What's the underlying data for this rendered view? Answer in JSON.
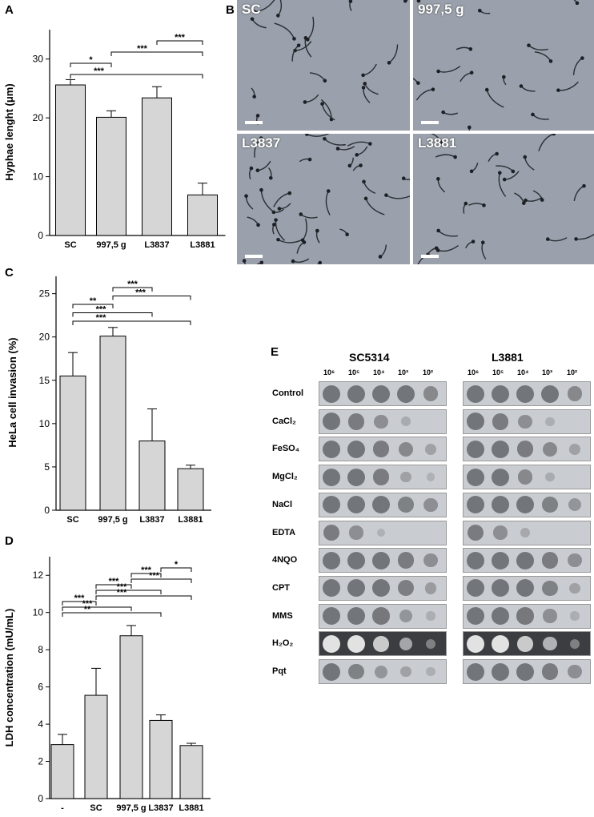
{
  "panels": {
    "a": "A",
    "b": "B",
    "c": "C",
    "d": "D",
    "e": "E"
  },
  "chart_data": [
    {
      "type": "bar",
      "panel": "A",
      "categories": [
        "SC",
        "997,5 g",
        "L3837",
        "L3881"
      ],
      "values": [
        25.6,
        20.1,
        23.4,
        6.9
      ],
      "errors": [
        0.9,
        1.1,
        1.9,
        2.0
      ],
      "ylabel": "Hyphae lenght (μm)",
      "ylim": [
        0,
        35
      ],
      "yticks": [
        "0",
        "10",
        "20",
        "30"
      ],
      "significance": [
        {
          "from": 0,
          "to": 1,
          "label": "*"
        },
        {
          "from": 0,
          "to": 3,
          "label": "***"
        },
        {
          "from": 1,
          "to": 3,
          "label": "***"
        },
        {
          "from": 2,
          "to": 3,
          "label": "***"
        }
      ]
    },
    {
      "type": "bar",
      "panel": "C",
      "categories": [
        "SC",
        "997,5 g",
        "L3837",
        "L3881"
      ],
      "values": [
        15.5,
        20.1,
        8.0,
        4.8
      ],
      "errors": [
        2.7,
        1.0,
        3.7,
        0.4
      ],
      "ylabel": "HeLa cell invasion (%)",
      "ylim": [
        0,
        27
      ],
      "yticks": [
        "0",
        "5",
        "10",
        "15",
        "20",
        "25"
      ],
      "significance": [
        {
          "from": 0,
          "to": 1,
          "label": "**"
        },
        {
          "from": 0,
          "to": 2,
          "label": "***"
        },
        {
          "from": 0,
          "to": 3,
          "label": "***"
        },
        {
          "from": 1,
          "to": 2,
          "label": "***"
        },
        {
          "from": 1,
          "to": 3,
          "label": "***"
        }
      ]
    },
    {
      "type": "bar",
      "panel": "D",
      "categories": [
        "-",
        "SC",
        "997,5 g",
        "L3837",
        "L3881"
      ],
      "values": [
        2.9,
        5.55,
        8.75,
        4.2,
        2.85
      ],
      "errors": [
        0.55,
        1.45,
        0.55,
        0.3,
        0.12
      ],
      "ylabel": "LDH concentration (mU/mL)",
      "ylim": [
        0,
        13
      ],
      "yticks": [
        "0",
        "2",
        "4",
        "6",
        "8",
        "10",
        "12"
      ],
      "significance": [
        {
          "from": 0,
          "to": 1,
          "label": "***"
        },
        {
          "from": 0,
          "to": 2,
          "label": "***"
        },
        {
          "from": 0,
          "to": 3,
          "label": "**"
        },
        {
          "from": 1,
          "to": 2,
          "label": "***"
        },
        {
          "from": 1,
          "to": 3,
          "label": "***"
        },
        {
          "from": 1,
          "to": 4,
          "label": "***"
        },
        {
          "from": 2,
          "to": 3,
          "label": "***"
        },
        {
          "from": 2,
          "to": 4,
          "label": "***"
        },
        {
          "from": 3,
          "to": 4,
          "label": "*"
        }
      ]
    }
  ],
  "micrographs": [
    {
      "label": "SC",
      "density": 0.5
    },
    {
      "label": "997,5 g",
      "density": 0.45
    },
    {
      "label": "L3837",
      "density": 0.9
    },
    {
      "label": "L3881",
      "density": 0.6
    }
  ],
  "spot_assay": {
    "strains": [
      "SC5314",
      "L3881"
    ],
    "dilutions": [
      "10⁶",
      "10⁵",
      "10⁴",
      "10³",
      "10²"
    ],
    "conditions": [
      {
        "label": "Control",
        "sc": [
          1,
          1,
          1,
          1,
          0.7
        ],
        "l": [
          1,
          1,
          1,
          1,
          0.7
        ]
      },
      {
        "label": "CaCl₂",
        "sc": [
          1,
          0.9,
          0.6,
          0.15,
          0
        ],
        "l": [
          1,
          0.9,
          0.6,
          0.1,
          0
        ]
      },
      {
        "label": "FeSO₄",
        "sc": [
          1,
          1,
          0.9,
          0.7,
          0.3
        ],
        "l": [
          1,
          1,
          0.9,
          0.7,
          0.3
        ]
      },
      {
        "label": "MgCl₂",
        "sc": [
          1,
          1,
          0.9,
          0.3,
          0.05
        ],
        "l": [
          1,
          1,
          0.7,
          0.15,
          0
        ]
      },
      {
        "label": "NaCl",
        "sc": [
          1,
          1,
          1,
          0.8,
          0.6
        ],
        "l": [
          1,
          1,
          1,
          0.8,
          0.5
        ]
      },
      {
        "label": "EDTA",
        "sc": [
          0.9,
          0.6,
          0.05,
          0,
          0
        ],
        "l": [
          0.9,
          0.6,
          0.2,
          0,
          0
        ]
      },
      {
        "label": "4NQO",
        "sc": [
          1,
          1,
          1,
          0.9,
          0.6
        ],
        "l": [
          1,
          1,
          1,
          0.9,
          0.6
        ]
      },
      {
        "label": "CPT",
        "sc": [
          1,
          1,
          1,
          0.85,
          0.4
        ],
        "l": [
          1,
          1,
          1,
          0.8,
          0.3
        ]
      },
      {
        "label": "MMS",
        "sc": [
          1,
          1,
          0.95,
          0.5,
          0.1
        ],
        "l": [
          1,
          1,
          0.95,
          0.6,
          0.1
        ]
      },
      {
        "label": "H₂O₂",
        "sc": [
          1,
          1,
          0.8,
          0.5,
          0.2
        ],
        "l": [
          1,
          1,
          0.8,
          0.6,
          0.2
        ]
      },
      {
        "label": "Pqt",
        "sc": [
          1,
          0.8,
          0.5,
          0.3,
          0.1
        ],
        "l": [
          1,
          1,
          1,
          0.9,
          0.6
        ]
      }
    ]
  }
}
